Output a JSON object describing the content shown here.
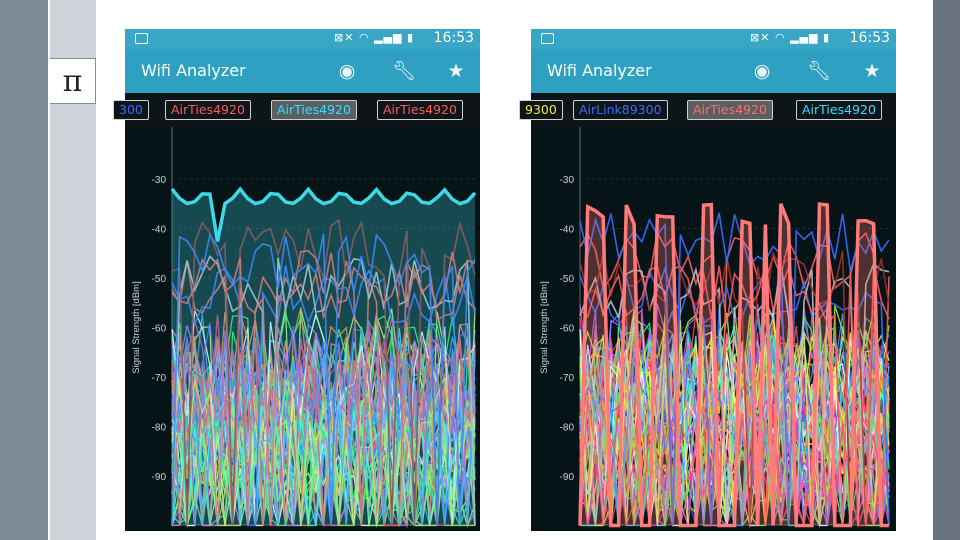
{
  "slide": {
    "symbol": "π"
  },
  "phones": [
    {
      "status": {
        "time": "16:53"
      },
      "app": {
        "title": "Wifi Analyzer",
        "icons": [
          "eye-icon",
          "wrench-icon",
          "star-icon"
        ]
      },
      "tabs": [
        "300",
        "AirTies4920",
        "AirTies4920",
        "AirTies4920"
      ],
      "selected_tab": 2,
      "tab_colors": [
        "#3f6bff",
        "#ff5a5a",
        "#33e0ff",
        "#ff5a5a"
      ],
      "highlight_color": "#3fd8e6",
      "chart": {
        "ylabel": "Signal Strength [dBm]",
        "ticks": [
          "-30",
          "-40",
          "-50",
          "-60",
          "-70",
          "-80",
          "-90"
        ]
      }
    },
    {
      "status": {
        "time": "16:53"
      },
      "app": {
        "title": "Wifi Analyzer",
        "icons": [
          "eye-icon",
          "wrench-icon",
          "star-icon"
        ]
      },
      "tabs": [
        "9300",
        "AirLink89300",
        "AirTies4920",
        "AirTies4920"
      ],
      "selected_tab": 2,
      "tab_colors": [
        "#f4e84a",
        "#3f6bff",
        "#ff6e6e",
        "#33e0ff"
      ],
      "highlight_color": "#ff7b7b",
      "chart": {
        "ylabel": "Signal Strength [dBm]",
        "ticks": [
          "-30",
          "-40",
          "-50",
          "-60",
          "-70",
          "-80",
          "-90"
        ]
      }
    }
  ]
}
